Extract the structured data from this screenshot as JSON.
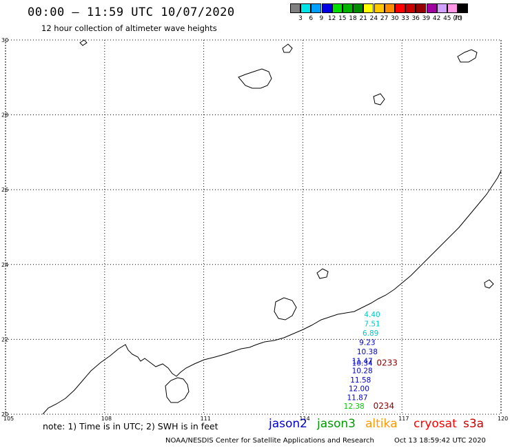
{
  "header": {
    "title": "00:00 – 11:59 UTC 10/07/2020",
    "subtitle": "12 hour collection of altimeter wave heights"
  },
  "colorbar": {
    "unit": "(ft)",
    "bins": [
      {
        "label": "3",
        "color": "#808080"
      },
      {
        "label": "6",
        "color": "#00e5e5"
      },
      {
        "label": "9",
        "color": "#00a0ff"
      },
      {
        "label": "12",
        "color": "#0000e0"
      },
      {
        "label": "15",
        "color": "#00e000"
      },
      {
        "label": "18",
        "color": "#00b400"
      },
      {
        "label": "21",
        "color": "#008c00"
      },
      {
        "label": "24",
        "color": "#ffff00"
      },
      {
        "label": "27",
        "color": "#ffc800"
      },
      {
        "label": "30",
        "color": "#ff8c00"
      },
      {
        "label": "33",
        "color": "#ff0000"
      },
      {
        "label": "36",
        "color": "#c80000"
      },
      {
        "label": "39",
        "color": "#960000"
      },
      {
        "label": "42",
        "color": "#a000a0"
      },
      {
        "label": "45",
        "color": "#d2a0ff"
      },
      {
        "label": "70",
        "color": "#ff96e6"
      },
      {
        "label": "",
        "color": "#000000"
      }
    ]
  },
  "map": {
    "lon_range": [
      105,
      120
    ],
    "lat_range": [
      20,
      30
    ],
    "x_ticks": [
      "105",
      "108",
      "111",
      "114",
      "117",
      "120"
    ],
    "y_ticks": [
      "20",
      "22",
      "24",
      "26",
      "28",
      "30"
    ],
    "grid": "dotted",
    "wave_heights": [
      {
        "value": "4.40",
        "lon": 116.1,
        "lat": 22.6,
        "color": "#00c8c8"
      },
      {
        "value": "7.51",
        "lon": 116.1,
        "lat": 22.35,
        "color": "#00c8c8"
      },
      {
        "value": "6.89",
        "lon": 116.05,
        "lat": 22.1,
        "color": "#00c8c8"
      },
      {
        "value": "9.23",
        "lon": 115.95,
        "lat": 21.85,
        "color": "#0000c8"
      },
      {
        "value": "10.38",
        "lon": 115.95,
        "lat": 21.6,
        "color": "#0000c8"
      },
      {
        "value": "11.47",
        "lon": 115.8,
        "lat": 21.35,
        "color": "#0000c8"
      },
      {
        "value": "10.34",
        "lon": 115.8,
        "lat": 21.3,
        "color": "#0000c8"
      },
      {
        "value": "10.28",
        "lon": 115.8,
        "lat": 21.1,
        "color": "#0000c8"
      },
      {
        "value": "11.58",
        "lon": 115.75,
        "lat": 20.85,
        "color": "#0000c8"
      },
      {
        "value": "12.00",
        "lon": 115.7,
        "lat": 20.62,
        "color": "#0000c8"
      },
      {
        "value": "11.87",
        "lon": 115.65,
        "lat": 20.38,
        "color": "#0000c8"
      },
      {
        "value": "12.38",
        "lon": 115.55,
        "lat": 20.15,
        "color": "#00c800"
      }
    ],
    "pass_times": [
      {
        "label": "0233",
        "lon": 116.55,
        "lat": 21.3
      },
      {
        "label": "0234",
        "lon": 116.45,
        "lat": 20.15
      }
    ]
  },
  "footer": {
    "note": "note: 1) Time is in UTC; 2) SWH is in feet",
    "satellites": [
      {
        "name": "jason2",
        "color": "#0000cc"
      },
      {
        "name": "jason3",
        "color": "#009900"
      },
      {
        "name": "altika",
        "color": "#ff9900"
      },
      {
        "name": "cryosat",
        "color": "#ff0000"
      },
      {
        "name": "s3a",
        "color": "#cc0000"
      }
    ],
    "credit": "NOAA/NESDIS Center for Satellite Applications and Research",
    "timestamp": "Oct 13 18:59:42 UTC 2020"
  }
}
